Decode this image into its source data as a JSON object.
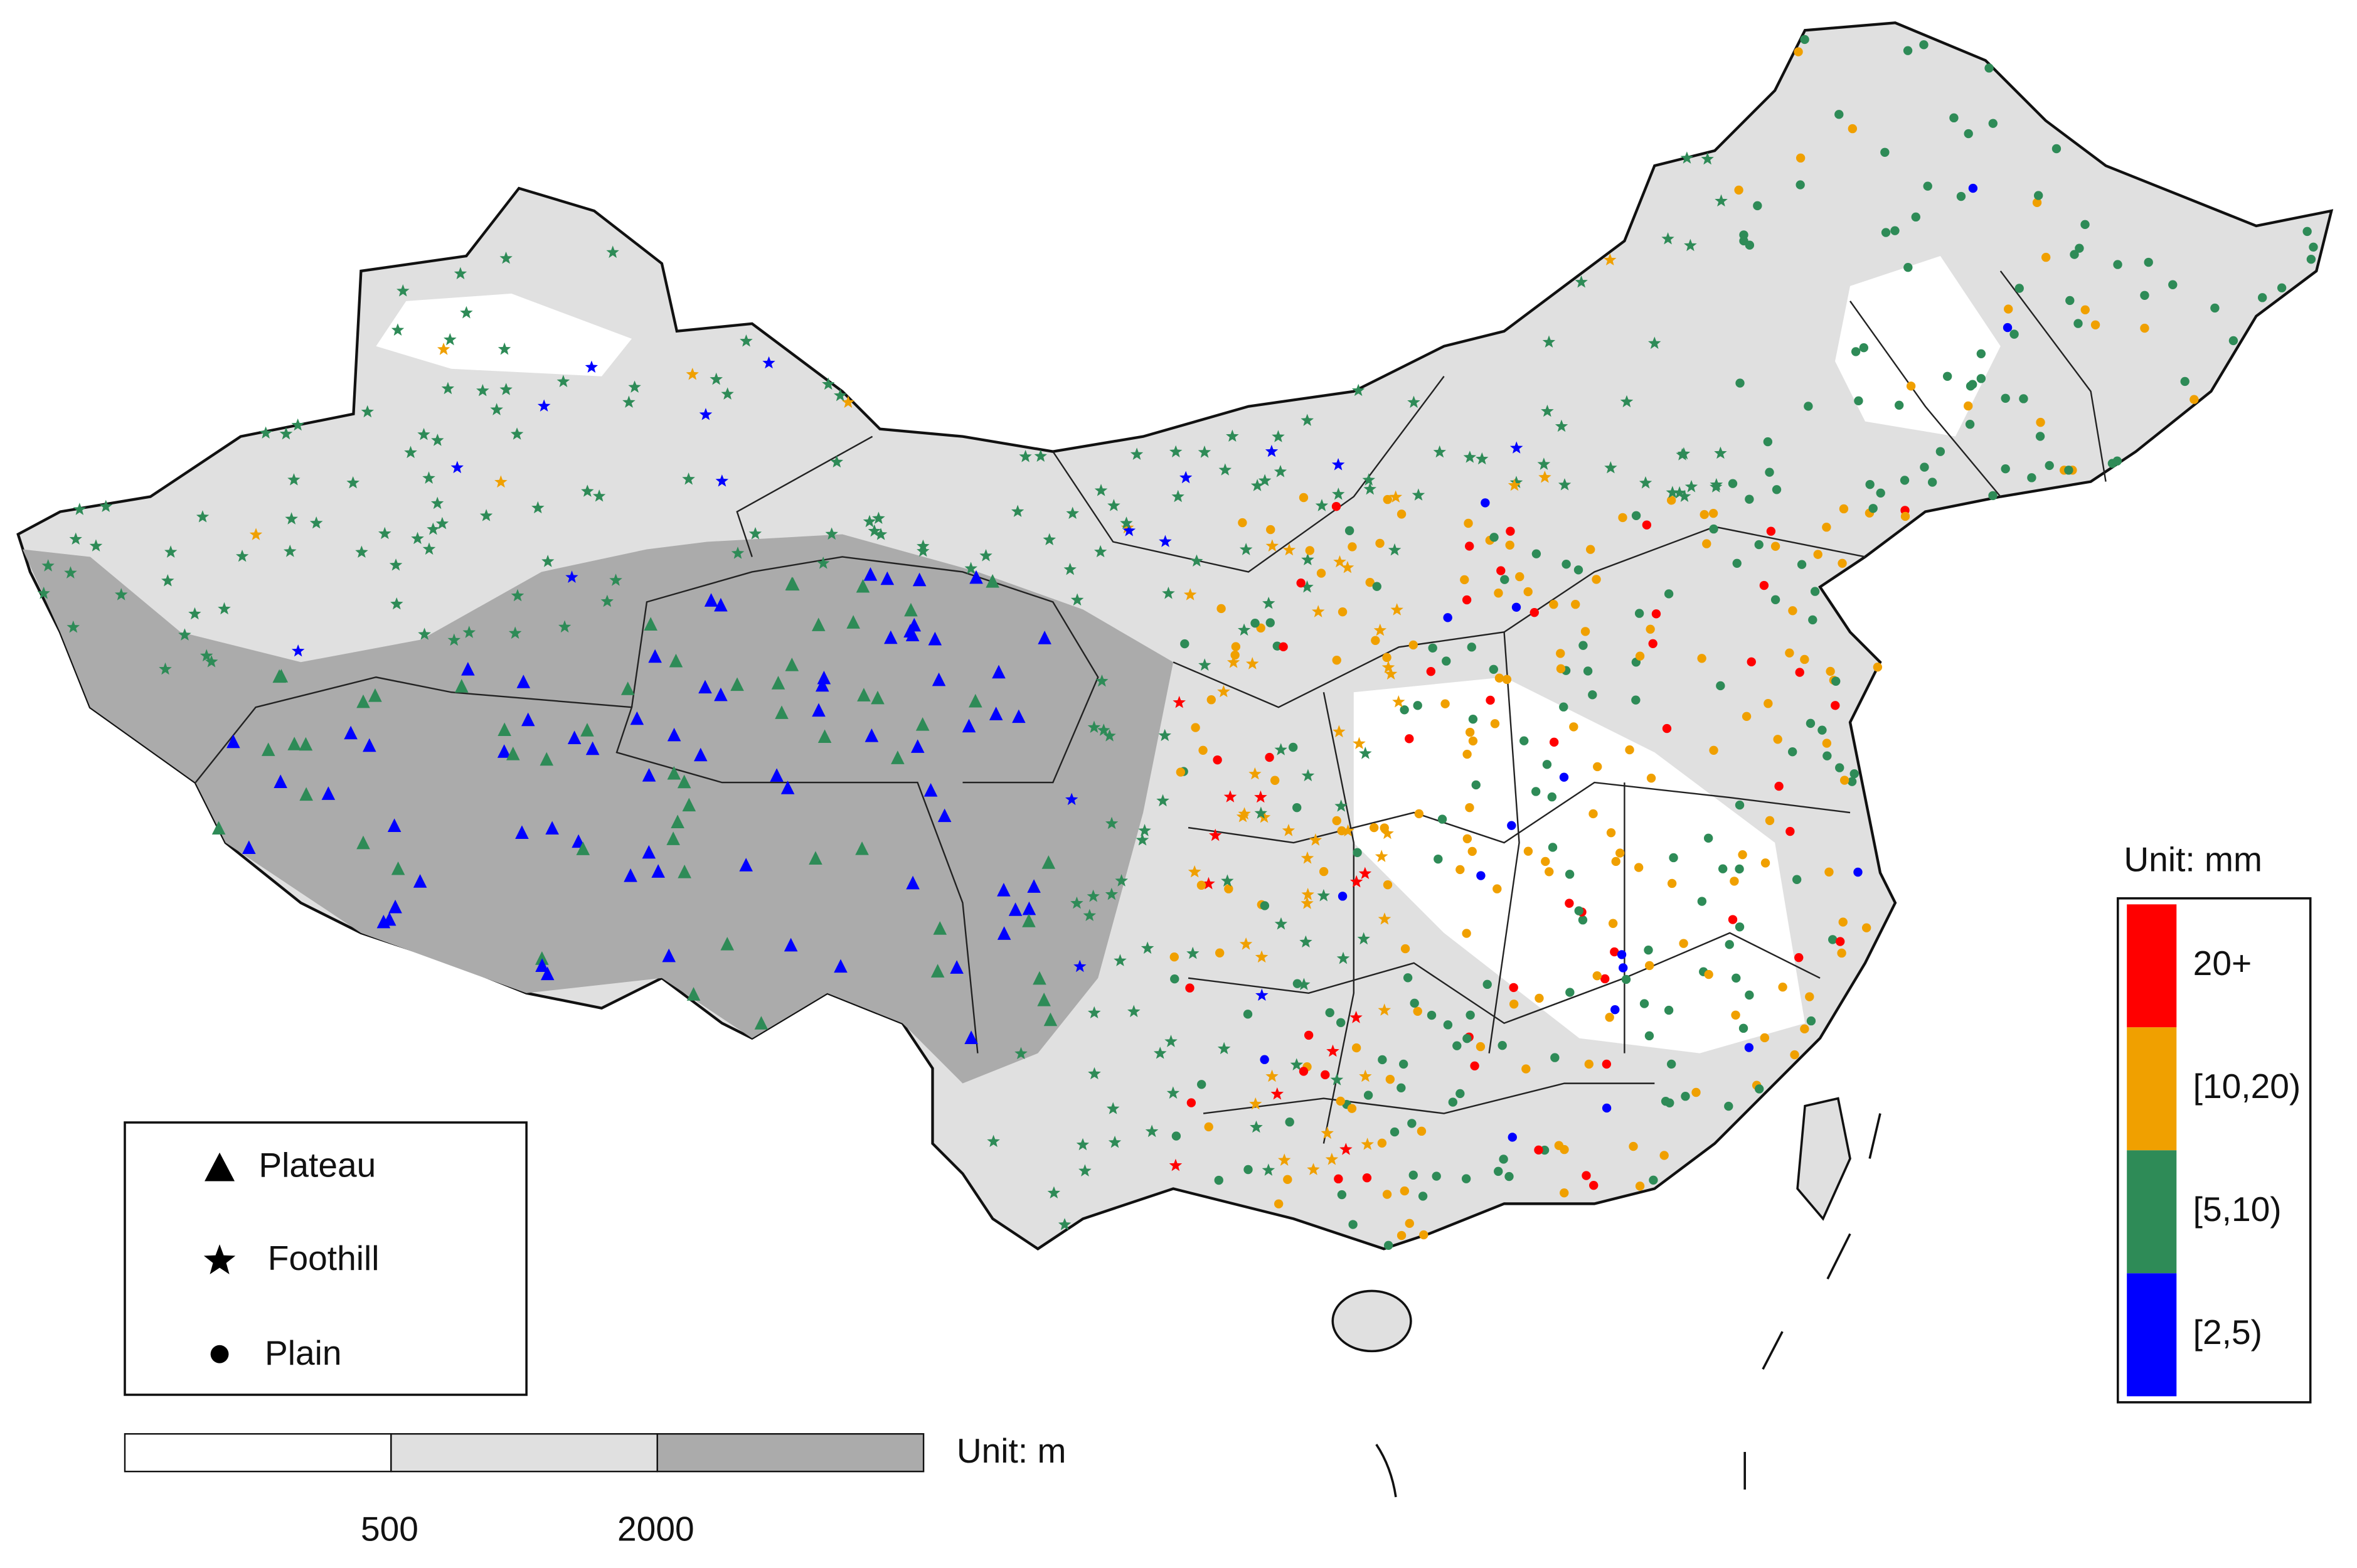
{
  "legend": {
    "landform": [
      {
        "label": "Plateau"
      },
      {
        "label": "Foothill"
      },
      {
        "label": "Plain"
      }
    ]
  },
  "elevation": {
    "unit": "Unit: m",
    "ticks": [
      500,
      2000
    ],
    "colors": [
      "#ffffff",
      "#e0e0e0",
      "#ababab"
    ]
  },
  "precipitation": {
    "unit": "Unit: mm",
    "classes": [
      {
        "label": "20+",
        "color": "#ff0000"
      },
      {
        "label": "[10,20)",
        "color": "#f0a000"
      },
      {
        "label": "[5,10)",
        "color": "#2e8b57"
      },
      {
        "label": "[2,5)",
        "color": "#0000ff"
      }
    ]
  }
}
